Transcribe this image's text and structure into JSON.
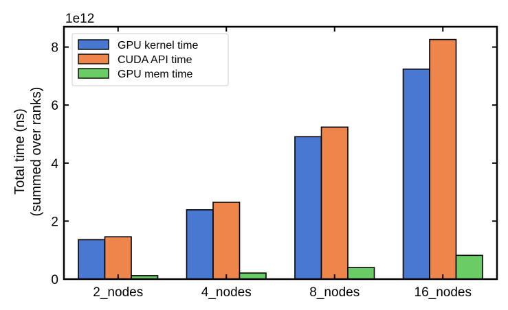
{
  "chart_data": {
    "type": "bar",
    "categories": [
      "2_nodes",
      "4_nodes",
      "8_nodes",
      "16_nodes"
    ],
    "series": [
      {
        "name": "GPU kernel time",
        "color": "#4878cf",
        "values": [
          1360000000000.0,
          2390000000000.0,
          4910000000000.0,
          7240000000000.0
        ]
      },
      {
        "name": "CUDA API time",
        "color": "#ee854a",
        "values": [
          1460000000000.0,
          2650000000000.0,
          5240000000000.0,
          8260000000000.0
        ]
      },
      {
        "name": "GPU mem time",
        "color": "#6acc64",
        "values": [
          120000000000.0,
          210000000000.0,
          400000000000.0,
          820000000000.0
        ]
      }
    ],
    "ylabel_line1": "Total time (ns)",
    "ylabel_line2": "(summed over ranks)",
    "xlabel": "",
    "title": "",
    "y_scale_label": "1e12",
    "y_scale": 1000000000000.0,
    "ylim": [
      0,
      8700000000000.0
    ],
    "yticks": [
      0,
      2,
      4,
      6,
      8
    ],
    "ytick_labels": [
      "0",
      "2",
      "4",
      "6",
      "8"
    ],
    "grid": false,
    "legend_position": "top-left"
  }
}
